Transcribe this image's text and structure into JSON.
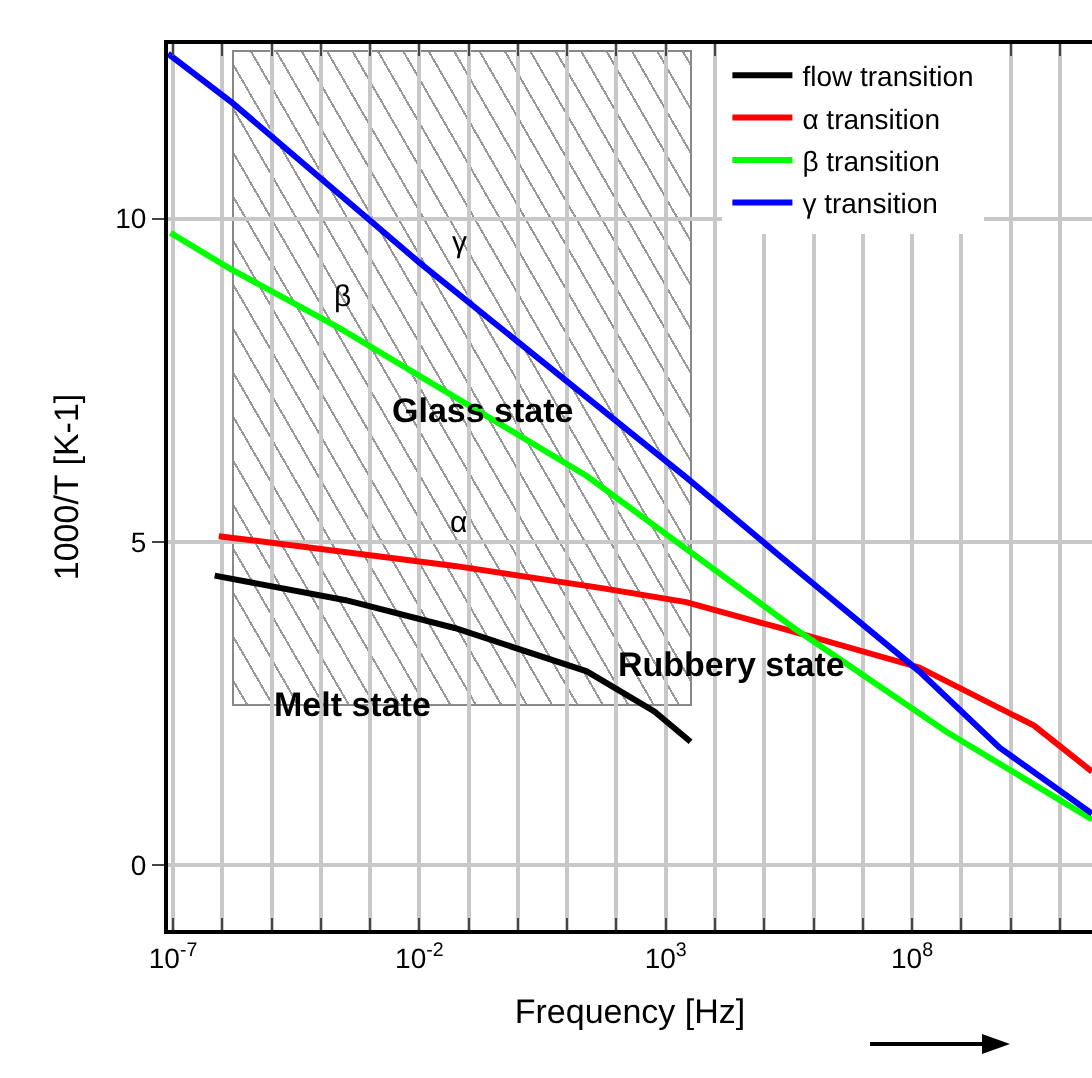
{
  "chart_data": {
    "type": "line",
    "xlabel": "Frequency [Hz]",
    "ylabel": "1000/T [K-1]",
    "log": "x",
    "grid": true,
    "legend": "top right",
    "xlim": [
      7.9e-08,
      450000000000.0
    ],
    "ylim": [
      -1,
      12.7
    ],
    "xticks": [
      {
        "value": 1e-07,
        "label": "10$^{-7}$"
      },
      {
        "value": 1e-06,
        "label": null
      },
      {
        "value": 1e-05,
        "label": null
      },
      {
        "value": 0.0001,
        "label": null
      },
      {
        "value": 0.001,
        "label": null
      },
      {
        "value": 0.01,
        "label": "10$^{-2}$"
      },
      {
        "value": 0.1,
        "label": null
      },
      {
        "value": 1,
        "label": null
      },
      {
        "value": 10,
        "label": null
      },
      {
        "value": 100,
        "label": null
      },
      {
        "value": 1000,
        "label": "10$^{3}$"
      },
      {
        "value": 10000.0,
        "label": null
      },
      {
        "value": 100000.0,
        "label": null
      },
      {
        "value": 1000000.0,
        "label": null
      },
      {
        "value": 10000000.0,
        "label": null
      },
      {
        "value": 100000000.0,
        "label": "10$^{8}$"
      },
      {
        "value": 1000000000.0,
        "label": null
      },
      {
        "value": 10000000000.0,
        "label": null
      },
      {
        "value": 100000000000.0,
        "label": null
      }
    ],
    "yticks": [
      0,
      5,
      10
    ],
    "series": [
      {
        "name": "flow transition",
        "color": "#000000",
        "x": [
          7e-07,
          0.00032,
          0.052,
          25,
          590,
          3200
        ],
        "values": [
          4.48,
          4.1,
          3.67,
          3.0,
          2.38,
          1.91
        ]
      },
      {
        "name": "α transition",
        "color": "#ff0000",
        "x": [
          8.5e-07,
          0.052,
          47,
          2600,
          210000.0,
          140000000.0,
          30000000000.0,
          450000000000.0
        ],
        "values": [
          5.09,
          4.63,
          4.29,
          4.07,
          3.67,
          3.06,
          2.16,
          1.45
        ]
      },
      {
        "name": "β transition",
        "color": "#00ff00",
        "x": [
          8.9e-08,
          1.4e-06,
          0.00025,
          25,
          400000.0,
          490000000.0,
          450000000000.0
        ],
        "values": [
          9.78,
          9.23,
          8.3,
          6.02,
          3.67,
          2.07,
          0.71
        ]
      },
      {
        "name": "γ transition",
        "color": "#0000ff",
        "x": [
          7.9e-08,
          1.6e-06,
          0.01,
          2600,
          210000.0,
          140000000.0,
          6000000000.0,
          450000000000.0
        ],
        "values": [
          12.55,
          11.79,
          9.32,
          6.0,
          4.78,
          3.0,
          1.82,
          0.8
        ]
      }
    ],
    "annotations": [
      "Glass state",
      "Rubbery state",
      "Melt state",
      "γ",
      "β",
      "α"
    ]
  }
}
